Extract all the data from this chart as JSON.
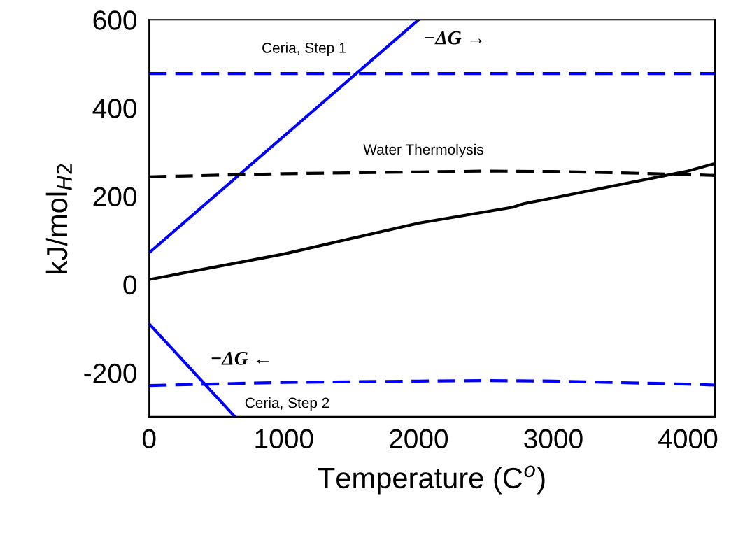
{
  "chart_data": {
    "type": "line",
    "xlabel": "Temperature (C$^{o}$)",
    "ylabel": "kJ/mol$_{H2}$",
    "xlim": [
      0,
      4200
    ],
    "ylim": [
      -300,
      600
    ],
    "xticks": [
      0,
      1000,
      2000,
      3000,
      4000
    ],
    "yticks": [
      -200,
      0,
      200,
      400,
      600
    ],
    "grid": false,
    "legend": false,
    "marker": "none",
    "series": [
      {
        "color": "#0000ff",
        "line_style": "solid",
        "x": [
          0,
          2000
        ],
        "values": [
          72,
          600
        ]
      },
      {
        "color": "#0000ff",
        "line_style": "dashed",
        "x": [
          0,
          4200
        ],
        "values": [
          478,
          478
        ]
      },
      {
        "color": "#000000",
        "line_style": "dashed",
        "x": [
          0,
          1000,
          2000,
          2500,
          3000,
          3500,
          4000,
          4200
        ],
        "values": [
          244,
          251,
          255,
          257,
          256,
          253,
          249,
          247
        ]
      },
      {
        "color": "#000000",
        "line_style": "solid",
        "x": [
          0,
          1000,
          2000,
          2700,
          2780,
          3000,
          4000,
          4200
        ],
        "values": [
          11,
          69,
          139,
          175,
          183,
          196,
          257,
          274
        ]
      },
      {
        "color": "#0000ff",
        "line_style": "solid",
        "x": [
          0,
          637
        ],
        "values": [
          -89,
          -300
        ]
      },
      {
        "color": "#0000ff",
        "line_style": "dashed",
        "x": [
          0,
          1000,
          2000,
          2500,
          3000,
          4000,
          4200
        ],
        "values": [
          -229,
          -222,
          -219,
          -218,
          -219,
          -226,
          -228
        ]
      }
    ],
    "annotations": [
      "Ceria, Step 1",
      "−ΔG →",
      "Water Thermolysis",
      "−ΔG ←",
      "Ceria, Step 2"
    ]
  }
}
